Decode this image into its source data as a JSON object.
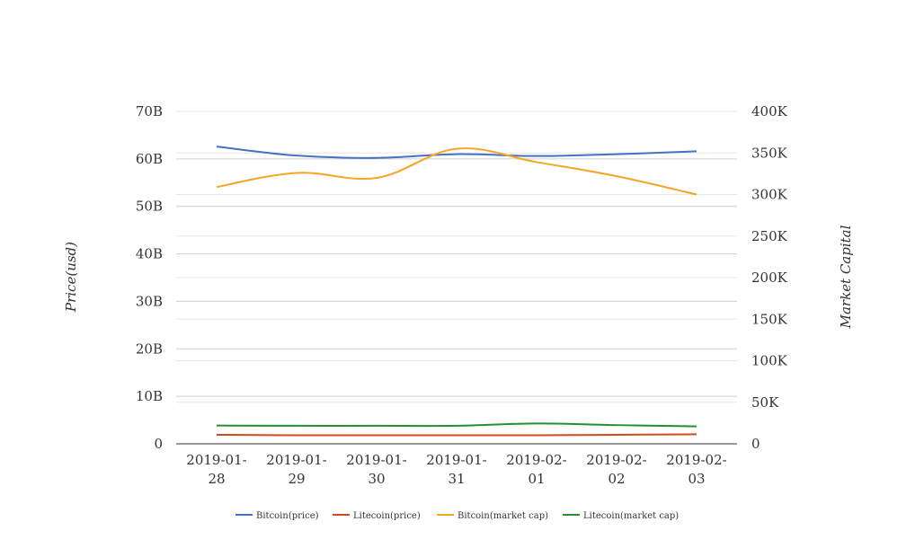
{
  "chart_data": {
    "type": "line",
    "title": "",
    "ylabel_left": "Price(usd)",
    "ylabel_right": "Market Capital",
    "x": [
      "2019-01-28",
      "2019-01-29",
      "2019-01-30",
      "2019-01-31",
      "2019-02-01",
      "2019-02-02",
      "2019-02-03"
    ],
    "x_tick_labels": [
      [
        "2019-01-",
        "28"
      ],
      [
        "2019-01-",
        "29"
      ],
      [
        "2019-01-",
        "30"
      ],
      [
        "2019-01-",
        "31"
      ],
      [
        "2019-02-",
        "01"
      ],
      [
        "2019-02-",
        "02"
      ],
      [
        "2019-02-",
        "03"
      ]
    ],
    "left_axis": {
      "ylim": [
        0,
        70000000000
      ],
      "ticks": [
        0,
        10000000000,
        20000000000,
        30000000000,
        40000000000,
        50000000000,
        60000000000,
        70000000000
      ],
      "tick_labels": [
        "0",
        "10B",
        "20B",
        "30B",
        "40B",
        "50B",
        "60B",
        "70B"
      ]
    },
    "right_axis": {
      "ylim": [
        0,
        400000
      ],
      "ticks": [
        0,
        50000,
        100000,
        150000,
        200000,
        250000,
        300000,
        350000,
        400000
      ],
      "tick_labels": [
        "0",
        "50K",
        "100K",
        "150K",
        "200K",
        "250K",
        "300K",
        "350K",
        "400K"
      ]
    },
    "grid": true,
    "legend_position": "bottom",
    "series": [
      {
        "name": "Bitcoin(price)",
        "axis": "left",
        "color": "#4472c4",
        "values": [
          62600000000,
          60700000000,
          60200000000,
          61000000000,
          60600000000,
          61000000000,
          61600000000
        ]
      },
      {
        "name": "Litecoin(price)",
        "axis": "left",
        "color": "#d04a1c",
        "values": [
          1900000000,
          1800000000,
          1800000000,
          1800000000,
          1800000000,
          1900000000,
          2000000000
        ]
      },
      {
        "name": "Bitcoin(market cap)",
        "axis": "right",
        "color": "#f5a623",
        "values": [
          309000,
          326000,
          320000,
          355000,
          339000,
          322000,
          300000
        ]
      },
      {
        "name": "Litecoin(market cap)",
        "axis": "right",
        "color": "#22922c",
        "values": [
          22000,
          21700,
          21700,
          21700,
          24500,
          22500,
          21000
        ]
      }
    ]
  }
}
